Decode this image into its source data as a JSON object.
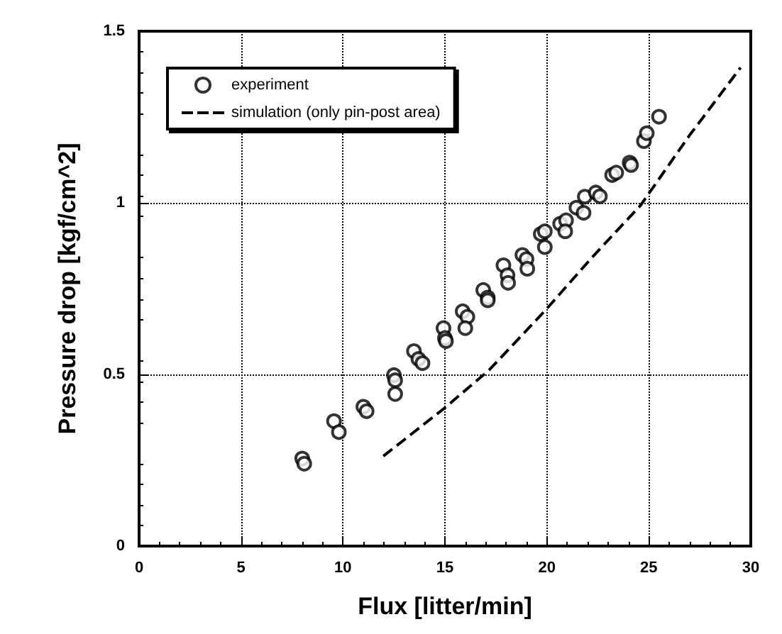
{
  "chart_data": {
    "type": "scatter",
    "xlabel": "Flux [litter/min]",
    "ylabel": "Pressure drop [kgf/cm^2]",
    "xlim": [
      0,
      30
    ],
    "xticks": [
      0,
      5,
      10,
      15,
      20,
      25,
      30
    ],
    "ylim": [
      0,
      1.5
    ],
    "yticks": [
      0,
      0.5,
      1,
      1.5
    ],
    "grid": true,
    "legend": "top left",
    "marker": "circle",
    "series": [
      {
        "name": "experiment",
        "color": "#000000",
        "x": [
          8.0,
          8.1,
          9.56,
          9.8,
          11.0,
          11.16,
          12.5,
          12.56,
          12.56,
          13.48,
          13.7,
          13.9,
          14.93,
          15.0,
          15.05,
          15.87,
          16.1,
          16.0,
          16.88,
          17.1,
          17.1,
          17.87,
          18.07,
          18.1,
          18.8,
          19.0,
          19.04,
          19.7,
          19.9,
          19.9,
          20.65,
          20.94,
          20.9,
          21.45,
          21.8,
          21.86,
          22.4,
          22.6,
          23.2,
          23.4,
          24.06,
          24.13,
          24.76,
          24.9,
          25.5
        ],
        "values": [
          0.255,
          0.24,
          0.364,
          0.332,
          0.406,
          0.393,
          0.498,
          0.483,
          0.443,
          0.568,
          0.545,
          0.533,
          0.635,
          0.606,
          0.597,
          0.684,
          0.668,
          0.635,
          0.746,
          0.724,
          0.716,
          0.818,
          0.789,
          0.767,
          0.848,
          0.836,
          0.808,
          0.909,
          0.917,
          0.871,
          0.939,
          0.949,
          0.917,
          0.986,
          0.971,
          1.018,
          1.03,
          1.019,
          1.081,
          1.088,
          1.117,
          1.11,
          1.18,
          1.203,
          1.251
        ]
      },
      {
        "name": "simulation (only pin-post area)",
        "type": "line",
        "color": "#000000",
        "line_style": "dashed",
        "marker": "none",
        "x": [
          11.98,
          15,
          17.17,
          19.93,
          22.2,
          24.6,
          27.0,
          29.5
        ],
        "values": [
          0.262,
          0.403,
          0.513,
          0.687,
          0.84,
          0.993,
          1.197,
          1.394
        ]
      }
    ]
  }
}
